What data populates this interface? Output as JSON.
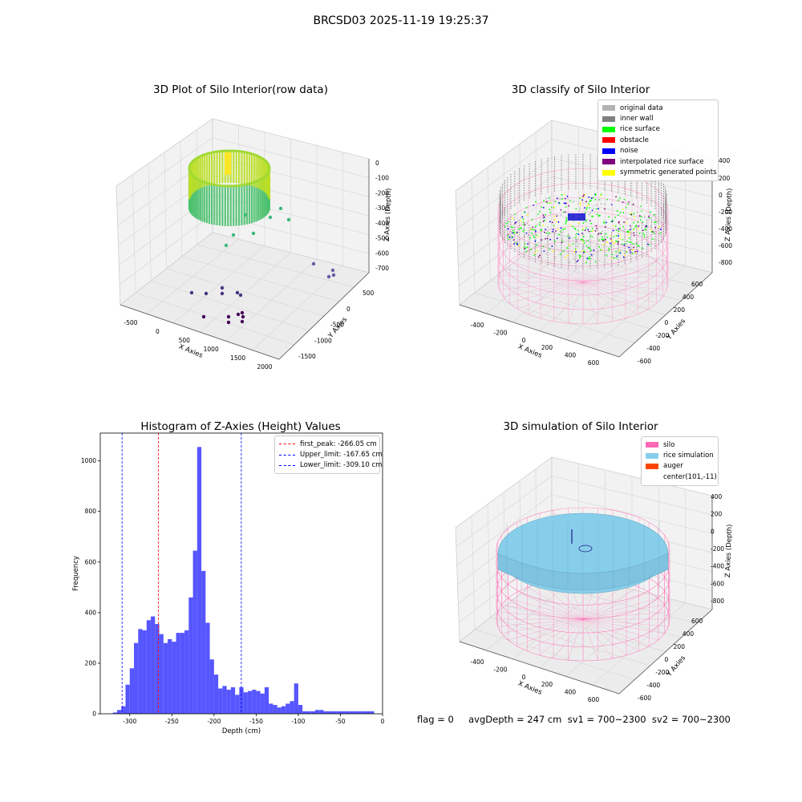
{
  "figure": {
    "suptitle": "BRCSD03 2025-11-19 19:25:37",
    "footer": "flag = 0     avgDepth = 247 cm  sv1 = 700~2300  sv2 = 700~2300"
  },
  "panels": {
    "raw": {
      "title": "3D Plot of Silo Interior(row data)",
      "xlabel": "X Axies",
      "ylabel": "Y Axies",
      "zlabel": "Z Axies (Depth)",
      "xticks": [
        "-500",
        "0",
        "500",
        "1000",
        "1500",
        "2000"
      ],
      "yticks": [
        "500",
        "0",
        "-500",
        "-1000",
        "-1500"
      ],
      "zticks": [
        "0",
        "-100",
        "-200",
        "-300",
        "-400",
        "-500",
        "-600",
        "-700"
      ]
    },
    "classify": {
      "title": "3D classify of Silo Interior",
      "xlabel": "X Axies",
      "ylabel": "Y Axies",
      "zlabel": "Z Axies (Depth)",
      "xticks": [
        "-400",
        "-200",
        "0",
        "200",
        "400",
        "600"
      ],
      "yticks": [
        "600",
        "400",
        "200",
        "0",
        "-200",
        "-400",
        "-600"
      ],
      "zticks": [
        "200",
        "0",
        "-200",
        "-400",
        "-600",
        "-800"
      ],
      "ztick_top": "400",
      "legend": [
        {
          "label": "original data",
          "color": "#b3b3b3"
        },
        {
          "label": "inner wall",
          "color": "#808080"
        },
        {
          "label": "rice surface",
          "color": "#00ff00"
        },
        {
          "label": "obstacle",
          "color": "#ff0000"
        },
        {
          "label": "noise",
          "color": "#0000ff"
        },
        {
          "label": "interpolated rice surface",
          "color": "#800080"
        },
        {
          "label": "symmetric generated points",
          "color": "#ffff00"
        }
      ]
    },
    "simulation": {
      "title": "3D simulation of Silo Interior",
      "xlabel": "X Axies",
      "ylabel": "Y Axies",
      "zlabel": "Z Axies (Depth)",
      "xticks": [
        "-400",
        "-200",
        "0",
        "200",
        "400",
        "600"
      ],
      "yticks": [
        "600",
        "400",
        "200",
        "0",
        "-200",
        "-400",
        "-600"
      ],
      "zticks": [
        "400",
        "200",
        "0",
        "-200",
        "-400",
        "-600",
        "-800"
      ],
      "legend": [
        {
          "label": "silo",
          "color": "#ff69b4"
        },
        {
          "label": "rice simulation",
          "color": "#87ceeb"
        },
        {
          "label": "auger",
          "color": "#ff4500"
        },
        {
          "label": "center(101,-11)",
          "color": ""
        }
      ]
    }
  },
  "chart_data": {
    "type": "bar",
    "title": "Histogram of Z-Axies (Height) Values",
    "xlabel": "Depth (cm)",
    "ylabel": "Frequency",
    "xlim": [
      -335,
      0
    ],
    "ylim": [
      0,
      1110
    ],
    "xticks": [
      -300,
      -250,
      -200,
      -150,
      -100,
      -50,
      0
    ],
    "yticks": [
      0,
      200,
      400,
      600,
      800,
      1000
    ],
    "bin_width": 5,
    "bins_start": [
      -320,
      -315,
      -310,
      -305,
      -300,
      -295,
      -290,
      -285,
      -280,
      -275,
      -270,
      -265,
      -260,
      -255,
      -250,
      -245,
      -240,
      -235,
      -230,
      -225,
      -220,
      -215,
      -210,
      -205,
      -200,
      -195,
      -190,
      -185,
      -180,
      -175,
      -170,
      -165,
      -160,
      -155,
      -150,
      -145,
      -140,
      -135,
      -130,
      -125,
      -120,
      -115,
      -110,
      -105,
      -100,
      -95,
      -90,
      -85,
      -80,
      -75,
      -70,
      -65,
      -60,
      -55,
      -50,
      -45,
      -40,
      -35,
      -30,
      -25,
      -20,
      -15
    ],
    "counts": [
      5,
      15,
      30,
      115,
      180,
      280,
      335,
      330,
      370,
      385,
      355,
      315,
      280,
      295,
      285,
      320,
      320,
      330,
      460,
      645,
      1055,
      565,
      360,
      215,
      155,
      100,
      110,
      95,
      105,
      75,
      105,
      85,
      90,
      95,
      90,
      80,
      105,
      40,
      35,
      25,
      30,
      40,
      50,
      120,
      35,
      10,
      10,
      10,
      15,
      15,
      10,
      10,
      10,
      10,
      10,
      10,
      10,
      10,
      10,
      10,
      10,
      10
    ],
    "color": "#4d4dff",
    "vlines": [
      {
        "name": "first_peak: -266.05 cm",
        "x": -266.05,
        "color": "#ff0000"
      },
      {
        "name": "Upper_limit: -167.65 cm",
        "x": -167.65,
        "color": "#0000ff"
      },
      {
        "name": "Lower_limit: -309.10 cm",
        "x": -309.1,
        "color": "#0000ff"
      }
    ],
    "legend_position": "upper-right"
  }
}
